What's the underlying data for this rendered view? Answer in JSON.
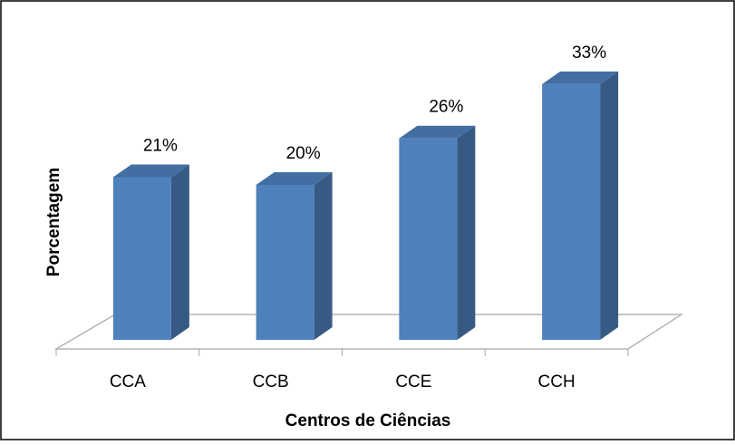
{
  "chart_data": {
    "type": "bar3d",
    "x_label": "Centros de Ciências",
    "y_label": "Porcentagem",
    "categories": [
      "CCA",
      "CCB",
      "CCE",
      "CCH"
    ],
    "values": [
      21,
      20,
      26,
      33
    ],
    "value_labels": [
      "21%",
      "20%",
      "26%",
      "33%"
    ],
    "color": "#4f81bd"
  }
}
